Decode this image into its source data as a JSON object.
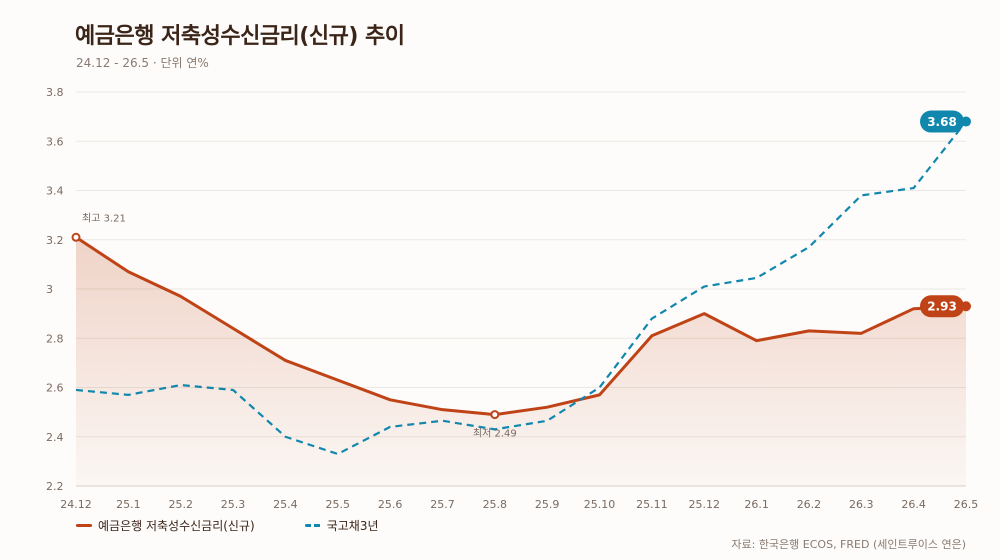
{
  "header": {
    "title": "예금은행 저축성수신금리(신규) 추이",
    "subtitle": "24.12 - 26.5 · 단위 연%"
  },
  "source": "자료: 한국은행 ECOS, FRED (세인트루이스 연은)",
  "colors": {
    "deposit": "#bf4316",
    "bond": "#1187ad",
    "grid": "#ece7e2"
  },
  "chart_data": {
    "type": "line",
    "title": "예금은행 저축성수신금리(신규) 추이",
    "x": [
      "24.12",
      "25.1",
      "25.2",
      "25.3",
      "25.4",
      "25.5",
      "25.6",
      "25.7",
      "25.8",
      "25.9",
      "25.10",
      "25.11",
      "25.12",
      "26.1",
      "26.2",
      "26.3",
      "26.4",
      "26.5"
    ],
    "ylim": [
      2.2,
      3.8
    ],
    "yticks": [
      "2.2",
      "2.4",
      "2.6",
      "2.8",
      "3",
      "3.2",
      "3.4",
      "3.6",
      "3.8"
    ],
    "grid": true,
    "legend_position": "bottom-left",
    "series": [
      {
        "name": "예금은행 저축성수신금리(신규)",
        "style": "solid-area",
        "values": [
          3.21,
          3.07,
          2.97,
          2.84,
          2.71,
          2.63,
          2.55,
          2.51,
          2.49,
          2.52,
          2.57,
          2.81,
          2.9,
          2.79,
          2.83,
          2.82,
          2.92,
          2.93
        ]
      },
      {
        "name": "국고채3년",
        "style": "dashed",
        "values": [
          2.59,
          2.57,
          2.61,
          2.59,
          2.4,
          2.33,
          2.44,
          2.465,
          2.43,
          2.465,
          2.6,
          2.88,
          3.01,
          3.045,
          3.17,
          3.38,
          3.41,
          3.68
        ]
      }
    ],
    "annotations": [
      {
        "text": "최고 3.21",
        "x": "24.12",
        "y": 3.21,
        "series": 0
      },
      {
        "text": "최저 2.49",
        "x": "25.8",
        "y": 2.49,
        "series": 0
      }
    ],
    "end_labels": [
      "2.93",
      "3.68"
    ]
  }
}
